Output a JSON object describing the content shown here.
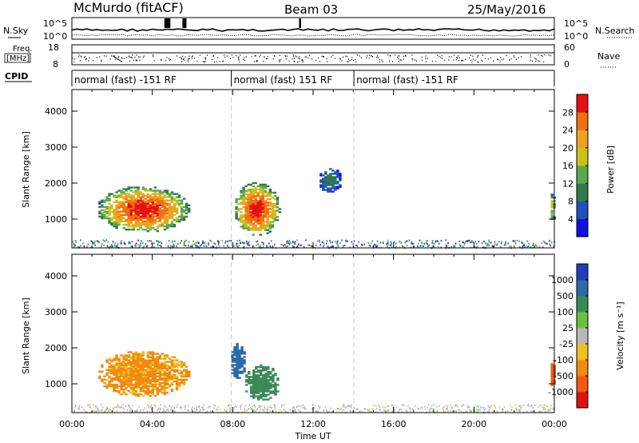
{
  "header": {
    "station": "McMurdo (fitACF)",
    "beam": "Beam 03",
    "date": "25/May/2016"
  },
  "strips": {
    "nsky_label": "N.Sky",
    "nsearch_label": "N.Search",
    "noise_ticks": [
      "10^5",
      "10^0"
    ],
    "freq_label_1": "Freq.",
    "freq_label_2": "[MHz]",
    "freq_ticks": [
      "18",
      "8"
    ],
    "nave_label": "Nave",
    "nave_ticks": [
      "60",
      "0"
    ],
    "cpid_label": "CPID",
    "cpid_segments": [
      {
        "label": "normal (fast) -151 RF",
        "start_h": 0.0,
        "end_h": 7.93
      },
      {
        "label": "normal (fast) 151 RF",
        "start_h": 7.93,
        "end_h": 14.03
      },
      {
        "label": "normal (fast) -151 RF",
        "start_h": 14.03,
        "end_h": 24.0
      }
    ]
  },
  "chart_data": [
    {
      "type": "heatmap",
      "panel": "power",
      "ylabel": "Slant Range [km]",
      "xlim": [
        0,
        24
      ],
      "ylim": [
        200,
        4600
      ],
      "yticks": [
        "1000",
        "2000",
        "3000",
        "4000"
      ],
      "colorbar": {
        "label": "Power [dB]",
        "ticks": [
          "4",
          "8",
          "12",
          "16",
          "20",
          "24",
          "28"
        ],
        "colors": [
          "#1010e0",
          "#2050b8",
          "#307a4a",
          "#5ca84e",
          "#c9c21e",
          "#f0a020",
          "#f07010",
          "#e61010"
        ]
      },
      "echo_regions": [
        {
          "t_start": 1.2,
          "t_end": 5.8,
          "r_min": 600,
          "r_max": 1900,
          "peak_db": 30
        },
        {
          "t_start": 8.0,
          "t_end": 10.3,
          "r_min": 500,
          "r_max": 2000,
          "peak_db": 30
        },
        {
          "t_start": 12.2,
          "t_end": 13.4,
          "r_min": 1700,
          "r_max": 2400,
          "peak_db": 10
        },
        {
          "t_start": 23.7,
          "t_end": 24.0,
          "r_min": 900,
          "r_max": 1700,
          "peak_db": 18
        }
      ]
    },
    {
      "type": "heatmap",
      "panel": "velocity",
      "xlabel": "Time UT",
      "ylabel": "Slant Range [km]",
      "xlim": [
        0,
        24
      ],
      "ylim": [
        200,
        4600
      ],
      "xticks": [
        "00:00",
        "04:00",
        "08:00",
        "12:00",
        "16:00",
        "20:00",
        "00:00"
      ],
      "yticks": [
        "1000",
        "2000",
        "3000",
        "4000"
      ],
      "colorbar": {
        "label": "Velocity [m s⁻¹]",
        "ticks": [
          "1000",
          "500",
          "100",
          "25",
          "-25",
          "-100",
          "-500",
          "-1000"
        ],
        "colors": [
          "#1f3fb8",
          "#2a6aa8",
          "#3a8a58",
          "#6cc040",
          "#b8b8b8",
          "#f0c020",
          "#f08a10",
          "#f05a10",
          "#e01010"
        ]
      },
      "echo_regions": [
        {
          "t_start": 1.2,
          "t_end": 5.8,
          "r_min": 600,
          "r_max": 1900,
          "mean_velocity": -150
        },
        {
          "t_start": 7.8,
          "t_end": 8.6,
          "r_min": 1100,
          "r_max": 2100,
          "mean_velocity": 800
        },
        {
          "t_start": 8.5,
          "t_end": 10.3,
          "r_min": 500,
          "r_max": 1500,
          "mean_velocity": 200
        },
        {
          "t_start": 23.7,
          "t_end": 24.0,
          "r_min": 900,
          "r_max": 1700,
          "mean_velocity": -600
        }
      ]
    }
  ]
}
